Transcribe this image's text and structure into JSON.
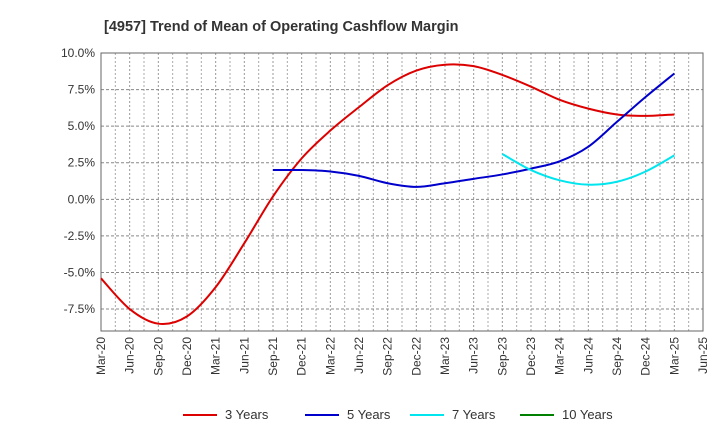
{
  "chart_data": {
    "type": "line",
    "title": "[4957]  Trend of Mean of Operating Cashflow Margin",
    "xlabel": "",
    "ylabel": "",
    "x_ticks": [
      "Mar-20",
      "Jun-20",
      "Sep-20",
      "Dec-20",
      "Mar-21",
      "Jun-21",
      "Sep-21",
      "Dec-21",
      "Mar-22",
      "Jun-22",
      "Sep-22",
      "Dec-22",
      "Mar-23",
      "Jun-23",
      "Sep-23",
      "Dec-23",
      "Mar-24",
      "Jun-24",
      "Sep-24",
      "Dec-24",
      "Mar-25",
      "Jun-25"
    ],
    "y_ticks": [
      "10.0%",
      "7.5%",
      "5.0%",
      "2.5%",
      "0.0%",
      "-2.5%",
      "-5.0%",
      "-7.5%"
    ],
    "y_tick_values": [
      10.0,
      7.5,
      5.0,
      2.5,
      0.0,
      -2.5,
      -5.0,
      -7.5
    ],
    "ylim": [
      -9.0,
      10.0
    ],
    "grid": true,
    "legend_position": "bottom",
    "series": [
      {
        "name": "3 Years",
        "color": "#dd0000",
        "points": [
          [
            "Mar-20",
            -5.4
          ],
          [
            "Jun-20",
            -7.5
          ],
          [
            "Sep-20",
            -8.5
          ],
          [
            "Dec-20",
            -8.0
          ],
          [
            "Mar-21",
            -6.0
          ],
          [
            "Jun-21",
            -3.0
          ],
          [
            "Sep-21",
            0.2
          ],
          [
            "Dec-21",
            2.8
          ],
          [
            "Mar-22",
            4.7
          ],
          [
            "Jun-22",
            6.3
          ],
          [
            "Sep-22",
            7.8
          ],
          [
            "Dec-22",
            8.8
          ],
          [
            "Mar-23",
            9.2
          ],
          [
            "Jun-23",
            9.1
          ],
          [
            "Sep-23",
            8.5
          ],
          [
            "Dec-23",
            7.7
          ],
          [
            "Mar-24",
            6.8
          ],
          [
            "Jun-24",
            6.2
          ],
          [
            "Sep-24",
            5.8
          ],
          [
            "Dec-24",
            5.7
          ],
          [
            "Mar-25",
            5.8
          ]
        ]
      },
      {
        "name": "5 Years",
        "color": "#0000cc",
        "points": [
          [
            "Sep-21",
            2.0
          ],
          [
            "Dec-21",
            2.0
          ],
          [
            "Mar-22",
            1.9
          ],
          [
            "Jun-22",
            1.6
          ],
          [
            "Sep-22",
            1.1
          ],
          [
            "Dec-22",
            0.85
          ],
          [
            "Mar-23",
            1.1
          ],
          [
            "Jun-23",
            1.4
          ],
          [
            "Sep-23",
            1.7
          ],
          [
            "Dec-23",
            2.1
          ],
          [
            "Mar-24",
            2.6
          ],
          [
            "Jun-24",
            3.6
          ],
          [
            "Sep-24",
            5.3
          ],
          [
            "Dec-24",
            7.0
          ],
          [
            "Mar-25",
            8.6
          ]
        ]
      },
      {
        "name": "7 Years",
        "color": "#00e5ee",
        "points": [
          [
            "Sep-23",
            3.1
          ],
          [
            "Dec-23",
            2.0
          ],
          [
            "Mar-24",
            1.3
          ],
          [
            "Jun-24",
            1.0
          ],
          [
            "Sep-24",
            1.2
          ],
          [
            "Dec-24",
            1.9
          ],
          [
            "Mar-25",
            3.0
          ]
        ]
      },
      {
        "name": "10 Years",
        "color": "#008000",
        "points": []
      }
    ]
  }
}
